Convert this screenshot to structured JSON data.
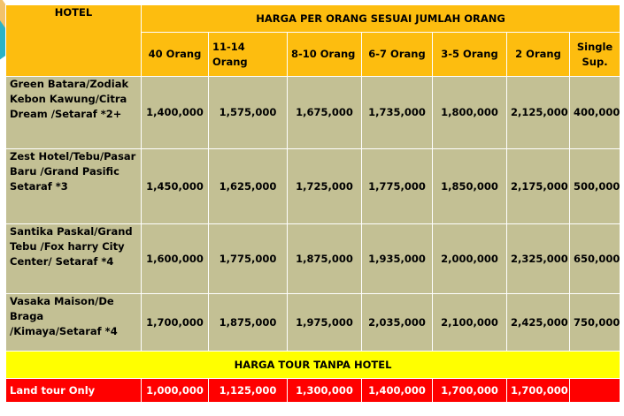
{
  "header": {
    "hotel_label": "HOTEL",
    "group_title": "HARGA PER ORANG SESUAI JUMLAH ORANG",
    "columns": [
      "40 Orang",
      "11-14 Orang",
      "8-10 Orang",
      "6-7 Orang",
      "3-5 Orang",
      "2 Orang",
      "Single Sup."
    ]
  },
  "rows": [
    {
      "hotel": "Green Batara/Zodiak Kebon Kawung/Citra Dream /Setaraf *2+",
      "prices": [
        "1,400,000",
        "1,575,000",
        "1,675,000",
        "1,735,000",
        "1,800,000",
        "2,125,000",
        "400,000"
      ]
    },
    {
      "hotel": "Zest Hotel/Tebu/Pasar Baru /Grand Pasific Setaraf *3",
      "prices": [
        "1,450,000",
        "1,625,000",
        "1,725,000",
        "1,775,000",
        "1,850,000",
        "2,175,000",
        "500,000"
      ]
    },
    {
      "hotel": "Santika Paskal/Grand Tebu /Fox harry City Center/ Setaraf *4",
      "prices": [
        "1,600,000",
        "1,775,000",
        "1,875,000",
        "1,935,000",
        "2,000,000",
        "2,325,000",
        "650,000"
      ]
    },
    {
      "hotel": "Vasaka Maison/De Braga /Kimaya/Setaraf *4",
      "prices": [
        "1,700,000",
        "1,875,000",
        "1,975,000",
        "2,035,000",
        "2,100,000",
        "2,425,000",
        "750,000"
      ]
    }
  ],
  "no_hotel": {
    "title": "HARGA TOUR TANPA HOTEL",
    "label": "Land tour Only",
    "prices": [
      "1,000,000",
      "1,125,000",
      "1,300,000",
      "1,400,000",
      "1,700,000",
      "1,700,000",
      ""
    ]
  },
  "colors": {
    "header": "#fdbd0f",
    "body": "#c3c094",
    "section": "#ffff00",
    "land_tour": "#ff0000"
  }
}
